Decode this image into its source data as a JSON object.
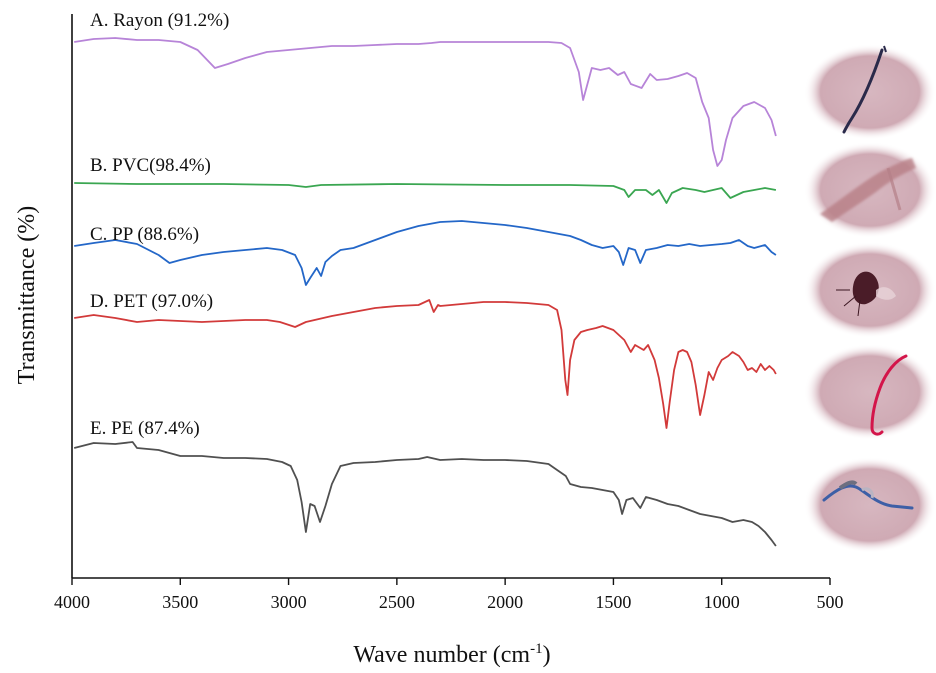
{
  "chart_data": {
    "type": "line",
    "xlabel_main": "Wave number (cm",
    "xlabel_sup": "-1",
    "xlabel_close": ")",
    "ylabel": "Transmittance (%)",
    "xlim": [
      4000,
      500
    ],
    "x_reversed": true,
    "grid": false,
    "legend": "none",
    "x_ticks": [
      4000,
      3500,
      3000,
      2500,
      2000,
      1500,
      1000,
      500
    ],
    "x_tick_labels": [
      "4000",
      "3500",
      "3000",
      "2500",
      "2000",
      "1500",
      "1000",
      "500"
    ],
    "series": [
      {
        "name": "A. Rayon (91.2%)",
        "color": "#b784d8",
        "points": [
          [
            3990,
            42
          ],
          [
            3900,
            39
          ],
          [
            3800,
            38
          ],
          [
            3700,
            40
          ],
          [
            3600,
            40
          ],
          [
            3500,
            42
          ],
          [
            3420,
            50
          ],
          [
            3340,
            68
          ],
          [
            3280,
            64
          ],
          [
            3200,
            58
          ],
          [
            3100,
            52
          ],
          [
            3000,
            50
          ],
          [
            2900,
            48
          ],
          [
            2800,
            46
          ],
          [
            2700,
            46
          ],
          [
            2600,
            45
          ],
          [
            2500,
            44
          ],
          [
            2400,
            44
          ],
          [
            2340,
            43
          ],
          [
            2300,
            42
          ],
          [
            2200,
            42
          ],
          [
            2100,
            42
          ],
          [
            2000,
            42
          ],
          [
            1900,
            42
          ],
          [
            1800,
            42
          ],
          [
            1740,
            43
          ],
          [
            1700,
            48
          ],
          [
            1660,
            72
          ],
          [
            1640,
            100
          ],
          [
            1600,
            68
          ],
          [
            1560,
            70
          ],
          [
            1520,
            68
          ],
          [
            1480,
            75
          ],
          [
            1450,
            72
          ],
          [
            1420,
            84
          ],
          [
            1370,
            88
          ],
          [
            1330,
            74
          ],
          [
            1300,
            80
          ],
          [
            1250,
            79
          ],
          [
            1200,
            76
          ],
          [
            1160,
            73
          ],
          [
            1120,
            78
          ],
          [
            1090,
            102
          ],
          [
            1060,
            118
          ],
          [
            1040,
            150
          ],
          [
            1020,
            166
          ],
          [
            1000,
            160
          ],
          [
            980,
            140
          ],
          [
            950,
            118
          ],
          [
            900,
            106
          ],
          [
            850,
            102
          ],
          [
            800,
            108
          ],
          [
            770,
            120
          ],
          [
            750,
            136
          ]
        ]
      },
      {
        "name": "B. PVC(98.4%)",
        "color": "#3aa651",
        "points": [
          [
            3990,
            183
          ],
          [
            3700,
            184
          ],
          [
            3300,
            184
          ],
          [
            3000,
            185
          ],
          [
            2920,
            187
          ],
          [
            2850,
            185
          ],
          [
            2500,
            184
          ],
          [
            2000,
            185
          ],
          [
            1700,
            185
          ],
          [
            1500,
            186
          ],
          [
            1450,
            190
          ],
          [
            1430,
            197
          ],
          [
            1400,
            190
          ],
          [
            1350,
            190
          ],
          [
            1320,
            195
          ],
          [
            1290,
            190
          ],
          [
            1255,
            203
          ],
          [
            1230,
            193
          ],
          [
            1180,
            188
          ],
          [
            1120,
            190
          ],
          [
            1080,
            192
          ],
          [
            1000,
            188
          ],
          [
            960,
            198
          ],
          [
            940,
            196
          ],
          [
            900,
            192
          ],
          [
            850,
            190
          ],
          [
            800,
            188
          ],
          [
            750,
            190
          ]
        ]
      },
      {
        "name": "C. PP (88.6%)",
        "color": "#2467c8",
        "points": [
          [
            3990,
            246
          ],
          [
            3900,
            243
          ],
          [
            3800,
            240
          ],
          [
            3700,
            244
          ],
          [
            3600,
            255
          ],
          [
            3550,
            263
          ],
          [
            3500,
            260
          ],
          [
            3400,
            255
          ],
          [
            3300,
            252
          ],
          [
            3200,
            250
          ],
          [
            3100,
            248
          ],
          [
            3030,
            250
          ],
          [
            2970,
            255
          ],
          [
            2940,
            268
          ],
          [
            2920,
            285
          ],
          [
            2900,
            278
          ],
          [
            2870,
            268
          ],
          [
            2850,
            276
          ],
          [
            2830,
            262
          ],
          [
            2800,
            256
          ],
          [
            2760,
            250
          ],
          [
            2700,
            248
          ],
          [
            2600,
            240
          ],
          [
            2500,
            232
          ],
          [
            2400,
            226
          ],
          [
            2300,
            222
          ],
          [
            2200,
            221
          ],
          [
            2100,
            223
          ],
          [
            2000,
            225
          ],
          [
            1900,
            228
          ],
          [
            1800,
            232
          ],
          [
            1700,
            236
          ],
          [
            1650,
            240
          ],
          [
            1600,
            245
          ],
          [
            1550,
            248
          ],
          [
            1500,
            246
          ],
          [
            1475,
            252
          ],
          [
            1455,
            265
          ],
          [
            1430,
            248
          ],
          [
            1400,
            250
          ],
          [
            1376,
            263
          ],
          [
            1350,
            250
          ],
          [
            1300,
            248
          ],
          [
            1250,
            245
          ],
          [
            1200,
            246
          ],
          [
            1150,
            244
          ],
          [
            1100,
            246
          ],
          [
            1050,
            245
          ],
          [
            1000,
            244
          ],
          [
            960,
            243
          ],
          [
            920,
            240
          ],
          [
            880,
            246
          ],
          [
            850,
            248
          ],
          [
            800,
            245
          ],
          [
            770,
            252
          ],
          [
            750,
            255
          ]
        ]
      },
      {
        "name": "D. PET (97.0%)",
        "color": "#d23a3a",
        "points": [
          [
            3990,
            318
          ],
          [
            3900,
            315
          ],
          [
            3800,
            318
          ],
          [
            3700,
            322
          ],
          [
            3600,
            320
          ],
          [
            3500,
            321
          ],
          [
            3400,
            322
          ],
          [
            3300,
            321
          ],
          [
            3200,
            320
          ],
          [
            3100,
            320
          ],
          [
            3040,
            322
          ],
          [
            2970,
            327
          ],
          [
            2920,
            322
          ],
          [
            2880,
            320
          ],
          [
            2800,
            316
          ],
          [
            2700,
            312
          ],
          [
            2600,
            308
          ],
          [
            2500,
            306
          ],
          [
            2400,
            305
          ],
          [
            2350,
            300
          ],
          [
            2330,
            312
          ],
          [
            2310,
            305
          ],
          [
            2300,
            306
          ],
          [
            2200,
            304
          ],
          [
            2100,
            302
          ],
          [
            2000,
            302
          ],
          [
            1900,
            303
          ],
          [
            1800,
            305
          ],
          [
            1760,
            310
          ],
          [
            1740,
            330
          ],
          [
            1722,
            380
          ],
          [
            1712,
            395
          ],
          [
            1700,
            360
          ],
          [
            1680,
            340
          ],
          [
            1650,
            332
          ],
          [
            1620,
            330
          ],
          [
            1580,
            328
          ],
          [
            1550,
            326
          ],
          [
            1500,
            330
          ],
          [
            1450,
            340
          ],
          [
            1420,
            352
          ],
          [
            1400,
            345
          ],
          [
            1360,
            350
          ],
          [
            1340,
            345
          ],
          [
            1310,
            360
          ],
          [
            1290,
            378
          ],
          [
            1270,
            404
          ],
          [
            1255,
            428
          ],
          [
            1240,
            402
          ],
          [
            1220,
            370
          ],
          [
            1200,
            352
          ],
          [
            1180,
            350
          ],
          [
            1160,
            352
          ],
          [
            1140,
            362
          ],
          [
            1120,
            385
          ],
          [
            1100,
            415
          ],
          [
            1080,
            395
          ],
          [
            1060,
            372
          ],
          [
            1040,
            380
          ],
          [
            1020,
            368
          ],
          [
            1000,
            360
          ],
          [
            970,
            356
          ],
          [
            950,
            352
          ],
          [
            920,
            356
          ],
          [
            900,
            362
          ],
          [
            880,
            370
          ],
          [
            860,
            368
          ],
          [
            840,
            372
          ],
          [
            820,
            364
          ],
          [
            800,
            370
          ],
          [
            780,
            366
          ],
          [
            760,
            370
          ],
          [
            750,
            374
          ]
        ]
      },
      {
        "name": "E. PE (87.4%)",
        "color": "#505050",
        "points": [
          [
            3990,
            448
          ],
          [
            3900,
            443
          ],
          [
            3800,
            444
          ],
          [
            3720,
            442
          ],
          [
            3700,
            448
          ],
          [
            3600,
            450
          ],
          [
            3500,
            456
          ],
          [
            3400,
            456
          ],
          [
            3300,
            458
          ],
          [
            3200,
            458
          ],
          [
            3100,
            459
          ],
          [
            3030,
            462
          ],
          [
            2990,
            466
          ],
          [
            2960,
            480
          ],
          [
            2940,
            502
          ],
          [
            2920,
            532
          ],
          [
            2900,
            504
          ],
          [
            2880,
            506
          ],
          [
            2855,
            522
          ],
          [
            2830,
            506
          ],
          [
            2800,
            484
          ],
          [
            2760,
            466
          ],
          [
            2700,
            463
          ],
          [
            2600,
            462
          ],
          [
            2500,
            460
          ],
          [
            2400,
            459
          ],
          [
            2360,
            457
          ],
          [
            2300,
            460
          ],
          [
            2200,
            459
          ],
          [
            2100,
            460
          ],
          [
            2000,
            460
          ],
          [
            1900,
            461
          ],
          [
            1800,
            464
          ],
          [
            1760,
            470
          ],
          [
            1720,
            476
          ],
          [
            1700,
            484
          ],
          [
            1650,
            487
          ],
          [
            1600,
            488
          ],
          [
            1550,
            490
          ],
          [
            1500,
            492
          ],
          [
            1475,
            500
          ],
          [
            1460,
            514
          ],
          [
            1440,
            500
          ],
          [
            1410,
            498
          ],
          [
            1376,
            508
          ],
          [
            1350,
            497
          ],
          [
            1300,
            500
          ],
          [
            1250,
            504
          ],
          [
            1200,
            506
          ],
          [
            1150,
            510
          ],
          [
            1100,
            514
          ],
          [
            1050,
            516
          ],
          [
            1000,
            518
          ],
          [
            950,
            522
          ],
          [
            900,
            520
          ],
          [
            860,
            522
          ],
          [
            830,
            526
          ],
          [
            800,
            532
          ],
          [
            770,
            540
          ],
          [
            750,
            546
          ]
        ]
      }
    ]
  }
}
